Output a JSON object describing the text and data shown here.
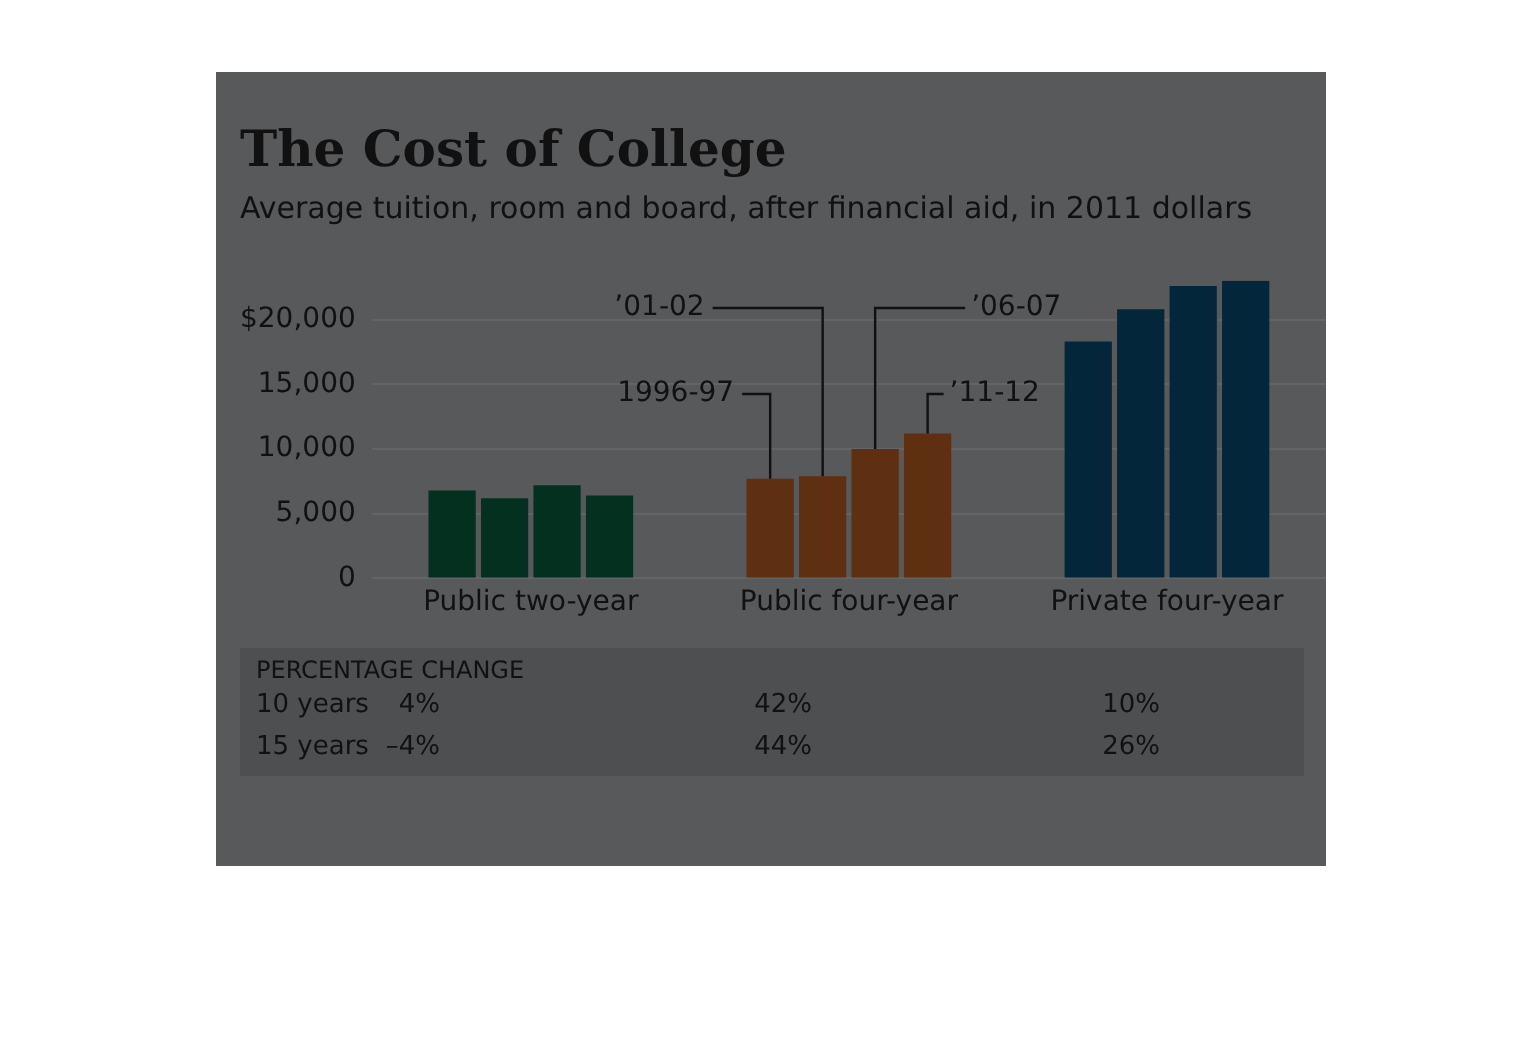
{
  "chart_data": {
    "type": "bar",
    "title": "The Cost of College",
    "subtitle": "Average tuition, room and board, after financial aid, in 2011 dollars",
    "categories": [
      "Public two-year",
      "Public four-year",
      "Private four-year"
    ],
    "series": [
      {
        "name": "1996-97",
        "colors": [
          "#04301f",
          "#5e2f10",
          "#03263a"
        ],
        "values": [
          6800,
          7700,
          18300
        ]
      },
      {
        "name": "’01-02",
        "colors": [
          "#04301f",
          "#5e2f10",
          "#03263a"
        ],
        "values": [
          6200,
          7900,
          20800
        ]
      },
      {
        "name": "’06-07",
        "colors": [
          "#04301f",
          "#5e2f10",
          "#03263a"
        ],
        "values": [
          7200,
          10000,
          22600
        ]
      },
      {
        "name": "’11-12",
        "colors": [
          "#04301f",
          "#5e2f10",
          "#03263a"
        ],
        "values": [
          6400,
          11200,
          23000
        ]
      }
    ],
    "ylim": [
      0,
      23000
    ],
    "yticks": [
      {
        "value": 0,
        "label": "0"
      },
      {
        "value": 5000,
        "label": "5,000"
      },
      {
        "value": 10000,
        "label": "10,000"
      },
      {
        "value": 15000,
        "label": "15,000"
      },
      {
        "value": 20000,
        "label": "$20,000"
      }
    ],
    "grid": "y",
    "legend": false,
    "annotations": [
      "PERCENTAGE CHANGE",
      "10 years",
      "4%",
      "42%",
      "10%",
      "15 years",
      "–4%",
      "44%",
      "26%"
    ]
  }
}
